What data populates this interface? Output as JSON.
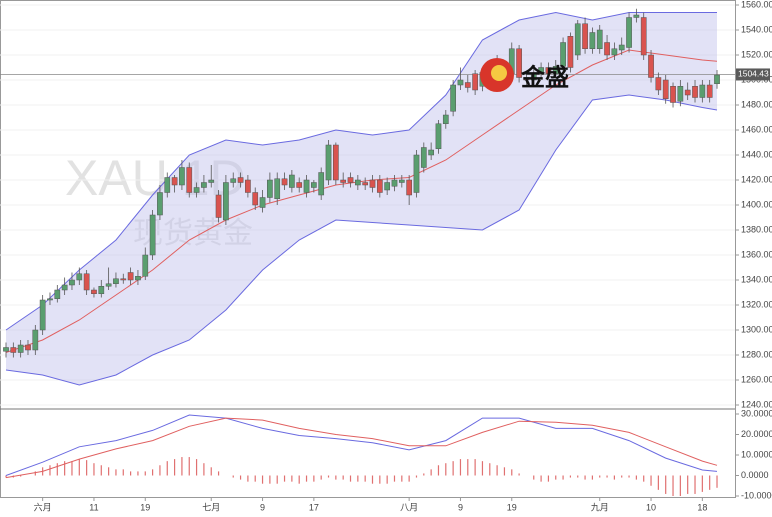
{
  "chart_data": {
    "type": "candlestick",
    "watermark": "XAU 1D",
    "watermark_subtitle": "现货黄金",
    "logo_text": "金盛",
    "last_price": 1504.43,
    "last_price_label": "1504.43",
    "up_color": "#5a9e6f",
    "down_color": "#d9534f",
    "grid": true,
    "categories": [
      null,
      null,
      null,
      null,
      null,
      "六月",
      null,
      null,
      null,
      null,
      null,
      null,
      "11",
      null,
      null,
      null,
      null,
      null,
      null,
      "19",
      null,
      null,
      null,
      null,
      null,
      null,
      null,
      null,
      "七月",
      null,
      null,
      null,
      null,
      null,
      null,
      "9",
      null,
      null,
      null,
      null,
      null,
      null,
      "17",
      null,
      null,
      null,
      null,
      null,
      null,
      null,
      null,
      null,
      null,
      null,
      null,
      "八月",
      null,
      null,
      null,
      null,
      null,
      null,
      "9",
      null,
      null,
      null,
      null,
      null,
      null,
      "19",
      null,
      null,
      null,
      null,
      null,
      null,
      null,
      null,
      null,
      null,
      null,
      "九月",
      null,
      null,
      null,
      null,
      null,
      null,
      "10",
      null,
      null,
      null,
      null,
      null,
      null,
      "18",
      null,
      null
    ],
    "open": [
      1283,
      1286,
      1282,
      1288,
      1284,
      1300,
      1324,
      1325,
      1332,
      1336,
      1340,
      1345,
      1332,
      1329,
      1335,
      1337,
      1341,
      1346,
      1340,
      1343,
      1360,
      1392,
      1410,
      1422,
      1416,
      1430,
      1410,
      1414,
      1418,
      1408,
      1388,
      1418,
      1422,
      1420,
      1410,
      1398,
      1406,
      1405,
      1421,
      1414,
      1418,
      1410,
      1414,
      1408,
      1420,
      1448,
      1420,
      1422,
      1416,
      1418,
      1420,
      1420,
      1412,
      1415,
      1418,
      1420,
      1410,
      1430,
      1440,
      1445,
      1465,
      1475,
      1496,
      1498,
      1505,
      1495,
      1506,
      1515,
      1496,
      1505,
      1525,
      1502,
      1500,
      1505,
      1510,
      1505,
      1511,
      1535,
      1520,
      1545,
      1525,
      1525,
      1530,
      1520,
      1524,
      1526,
      1550,
      1550,
      1520,
      1502,
      1500,
      1495,
      1483,
      1492,
      1495,
      1486,
      1496,
      1497
    ],
    "high": [
      1290,
      1290,
      1292,
      1292,
      1304,
      1328,
      1330,
      1336,
      1342,
      1346,
      1350,
      1348,
      1334,
      1340,
      1350,
      1346,
      1345,
      1350,
      1348,
      1366,
      1396,
      1416,
      1426,
      1424,
      1436,
      1434,
      1418,
      1424,
      1432,
      1412,
      1424,
      1426,
      1426,
      1424,
      1414,
      1412,
      1426,
      1426,
      1426,
      1428,
      1422,
      1424,
      1420,
      1430,
      1452,
      1450,
      1426,
      1426,
      1424,
      1422,
      1424,
      1424,
      1422,
      1424,
      1424,
      1424,
      1444,
      1450,
      1450,
      1468,
      1476,
      1500,
      1510,
      1504,
      1508,
      1510,
      1512,
      1520,
      1510,
      1530,
      1528,
      1506,
      1510,
      1514,
      1514,
      1516,
      1534,
      1538,
      1548,
      1550,
      1542,
      1544,
      1536,
      1530,
      1534,
      1554,
      1557,
      1554,
      1524,
      1506,
      1504,
      1498,
      1500,
      1498,
      1500,
      1500,
      1500,
      1508
    ],
    "low": [
      1278,
      1278,
      1278,
      1280,
      1280,
      1296,
      1320,
      1322,
      1328,
      1332,
      1336,
      1328,
      1326,
      1326,
      1332,
      1334,
      1337,
      1336,
      1336,
      1340,
      1356,
      1388,
      1406,
      1410,
      1412,
      1406,
      1406,
      1410,
      1414,
      1386,
      1384,
      1414,
      1414,
      1406,
      1396,
      1394,
      1402,
      1400,
      1412,
      1410,
      1410,
      1406,
      1410,
      1404,
      1416,
      1416,
      1414,
      1414,
      1412,
      1412,
      1410,
      1406,
      1408,
      1411,
      1414,
      1400,
      1406,
      1426,
      1436,
      1441,
      1461,
      1471,
      1492,
      1490,
      1488,
      1491,
      1496,
      1492,
      1492,
      1501,
      1498,
      1496,
      1496,
      1501,
      1501,
      1501,
      1507,
      1506,
      1516,
      1521,
      1521,
      1521,
      1516,
      1516,
      1520,
      1522,
      1546,
      1516,
      1498,
      1488,
      1481,
      1478,
      1479,
      1484,
      1482,
      1482,
      1482,
      1493
    ],
    "close": [
      1286,
      1282,
      1288,
      1284,
      1300,
      1324,
      1325,
      1332,
      1336,
      1340,
      1345,
      1332,
      1329,
      1335,
      1337,
      1341,
      1340,
      1340,
      1343,
      1360,
      1392,
      1410,
      1422,
      1416,
      1430,
      1410,
      1414,
      1418,
      1420,
      1390,
      1418,
      1421,
      1418,
      1410,
      1400,
      1406,
      1420,
      1421,
      1416,
      1424,
      1414,
      1420,
      1418,
      1426,
      1448,
      1420,
      1418,
      1418,
      1420,
      1416,
      1414,
      1410,
      1418,
      1420,
      1420,
      1408,
      1440,
      1446,
      1444,
      1465,
      1472,
      1496,
      1500,
      1494,
      1492,
      1506,
      1500,
      1496,
      1506,
      1525,
      1502,
      1500,
      1505,
      1510,
      1505,
      1511,
      1530,
      1510,
      1545,
      1525,
      1538,
      1540,
      1520,
      1525,
      1528,
      1550,
      1552,
      1520,
      1502,
      1492,
      1485,
      1482,
      1495,
      1488,
      1486,
      1496,
      1486,
      1504
    ],
    "ylim": [
      1240,
      1560
    ],
    "yticks": [
      {
        "value": 1240,
        "label": "1240.00"
      },
      {
        "value": 1260,
        "label": "1260.00"
      },
      {
        "value": 1280,
        "label": "1280.00"
      },
      {
        "value": 1300,
        "label": "1300.00"
      },
      {
        "value": 1320,
        "label": "1320.00"
      },
      {
        "value": 1340,
        "label": "1340.00"
      },
      {
        "value": 1360,
        "label": "1360.00"
      },
      {
        "value": 1380,
        "label": "1380.00"
      },
      {
        "value": 1400,
        "label": "1400.00"
      },
      {
        "value": 1420,
        "label": "1420.00"
      },
      {
        "value": 1440,
        "label": "1440.00"
      },
      {
        "value": 1460,
        "label": "1460.00"
      },
      {
        "value": 1480,
        "label": "1480.00"
      },
      {
        "value": 1500,
        "label": "1500.00"
      },
      {
        "value": 1520,
        "label": "1520.00"
      },
      {
        "value": 1540,
        "label": "1540.00"
      },
      {
        "value": 1560,
        "label": "1560.00"
      }
    ],
    "bands": {
      "color": "#6a6ae0",
      "middle_color": "#e06060",
      "fill": "rgba(190,190,235,0.45)",
      "x": [
        0,
        5,
        10,
        15,
        20,
        25,
        30,
        35,
        40,
        45,
        50,
        55,
        60,
        65,
        70,
        75,
        80,
        85,
        90,
        95,
        97
      ],
      "upper": [
        1300,
        1320,
        1348,
        1372,
        1408,
        1440,
        1452,
        1448,
        1452,
        1460,
        1456,
        1460,
        1488,
        1532,
        1548,
        1554,
        1548,
        1554,
        1554,
        1554,
        1554
      ],
      "middle": [
        1282,
        1292,
        1308,
        1328,
        1348,
        1372,
        1388,
        1400,
        1408,
        1416,
        1420,
        1422,
        1436,
        1456,
        1476,
        1496,
        1512,
        1524,
        1520,
        1516,
        1515
      ],
      "lower": [
        1268,
        1264,
        1256,
        1264,
        1280,
        1292,
        1316,
        1348,
        1372,
        1388,
        1386,
        1384,
        1382,
        1380,
        1396,
        1444,
        1484,
        1488,
        1484,
        1478,
        1476
      ]
    },
    "macd": {
      "line_color": "#6a6ae0",
      "signal_color": "#e06060",
      "hist_color": "#e07070",
      "x": [
        0,
        5,
        10,
        15,
        20,
        25,
        30,
        35,
        40,
        45,
        50,
        55,
        60,
        65,
        70,
        75,
        80,
        85,
        90,
        95,
        97
      ],
      "macd": [
        0,
        6.5,
        14,
        17,
        22,
        29.5,
        28,
        23,
        19.5,
        18,
        16,
        12.5,
        17,
        28,
        28,
        23,
        23,
        17,
        8.5,
        2.7,
        2
      ],
      "signal": [
        -1,
        2,
        8,
        13,
        17,
        24,
        28,
        27,
        23,
        20,
        18,
        14.5,
        14.5,
        21,
        26.5,
        26,
        24.5,
        21,
        14,
        7,
        5
      ],
      "histogram": [
        -1,
        -1,
        -0.5,
        0,
        2,
        4,
        5,
        6,
        7,
        7,
        8,
        7.5,
        6,
        5,
        4,
        3,
        3,
        2,
        2,
        2,
        3,
        5,
        7,
        8,
        9,
        9,
        8,
        6,
        4,
        2,
        0,
        -1,
        -2,
        -3,
        -3,
        -4,
        -4,
        -4,
        -3,
        -3,
        -4,
        -3,
        -3,
        -2,
        -1,
        -2,
        -2,
        -3,
        -3,
        -3,
        -4,
        -4,
        -4,
        -3,
        -3,
        -3,
        -1,
        1,
        3,
        5,
        6,
        7,
        8,
        8,
        8,
        7,
        6,
        5,
        4,
        3,
        1,
        0,
        -2,
        -3,
        -3,
        -2,
        -2,
        -1,
        -1,
        -2,
        -2,
        -1,
        -1,
        -2,
        -1,
        -1,
        -2,
        -3,
        -5,
        -7,
        -9,
        -10,
        -10,
        -9,
        -9,
        -8,
        -7,
        -6
      ],
      "ylim": [
        -10,
        30
      ],
      "yticks": [
        {
          "value": -10,
          "label": "-10.0000"
        },
        {
          "value": 0,
          "label": "0.0000"
        },
        {
          "value": 10,
          "label": "10.0000"
        },
        {
          "value": 20,
          "label": "20.0000"
        },
        {
          "value": 30,
          "label": "30.0000"
        }
      ]
    }
  }
}
